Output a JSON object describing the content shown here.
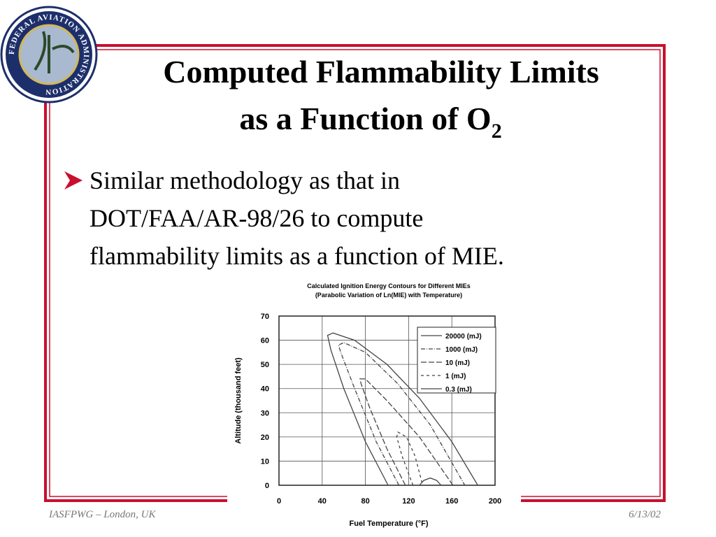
{
  "slide": {
    "logo_text": "FEDERAL AVIATION ADMINISTRATION",
    "title_line1": "Computed Flammability Limits",
    "title_line2": "as a Function of O",
    "title_subscript": "2",
    "bullet_lines": [
      "Similar methodology as that in",
      "DOT/FAA/AR-98/26 to compute",
      "flammability limits as a function of MIE."
    ],
    "footer_left": "IASFPWG – London, UK",
    "footer_right": "6/13/02"
  },
  "chart_data": {
    "type": "line",
    "title": [
      "Calculated Ignition Energy Contours for Different MIEs",
      "(Parabolic Variation of Ln(MIE) with Temperature)"
    ],
    "x_label": "Fuel Temperature (°F)",
    "y_label": "Altitude (thousand feet)",
    "xlim": [
      0,
      200
    ],
    "ylim": [
      0,
      70
    ],
    "xticks": [
      0,
      40,
      80,
      120,
      160,
      200
    ],
    "yticks": [
      0,
      10,
      20,
      30,
      40,
      50,
      60,
      70
    ],
    "grid": true,
    "legend": "top-right",
    "series": [
      {
        "name": "20000 (mJ)",
        "color": "#444444",
        "dash": "none",
        "x": [
          101,
          80,
          60,
          48,
          45,
          50,
          70,
          100,
          130,
          160,
          184
        ],
        "values": [
          0,
          18,
          40,
          56,
          62,
          63,
          60,
          50,
          36,
          18,
          0
        ]
      },
      {
        "name": "1000 (mJ)",
        "color": "#444444",
        "dash": "6 2 1 2",
        "x": [
          111,
          90,
          70,
          58,
          55,
          60,
          80,
          110,
          140,
          172
        ],
        "values": [
          0,
          18,
          40,
          54,
          58,
          59,
          55,
          42,
          25,
          0
        ]
      },
      {
        "name": "10 (mJ)",
        "color": "#444444",
        "dash": "8 3",
        "x": [
          117,
          100,
          84,
          76,
          75,
          80,
          100,
          130,
          161
        ],
        "values": [
          0,
          15,
          32,
          42,
          44,
          44,
          35,
          20,
          0
        ]
      },
      {
        "name": "1 (mJ)",
        "color": "#444444",
        "dash": "4 4",
        "x": [
          124,
          114,
          109,
          110,
          118,
          126,
          133
        ],
        "values": [
          0,
          12,
          20,
          22,
          20,
          12,
          0
        ]
      },
      {
        "name": "0.3 (mJ)",
        "color": "#444444",
        "dash": "none",
        "x": [
          130,
          134,
          140,
          146,
          150
        ],
        "values": [
          0,
          2,
          3,
          2,
          0
        ]
      }
    ]
  }
}
